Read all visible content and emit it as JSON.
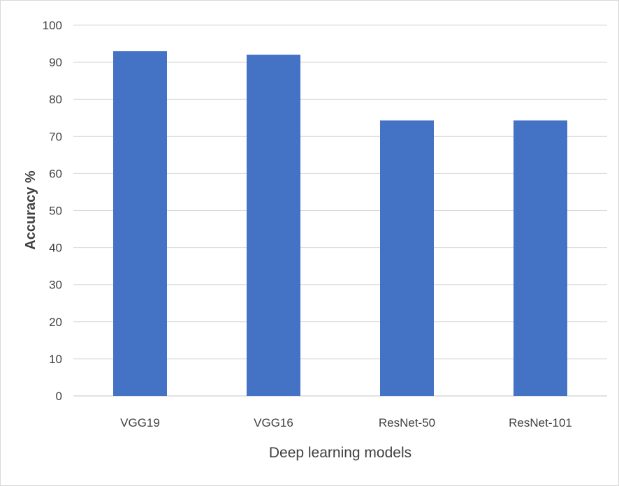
{
  "chart_data": {
    "type": "bar",
    "categories": [
      "VGG19",
      "VGG16",
      "ResNet-50",
      "ResNet-101"
    ],
    "values": [
      93,
      92,
      74.3,
      74.3
    ],
    "title": "",
    "xlabel": "Deep learning models",
    "ylabel": "Accuracy %",
    "ylim": [
      0,
      100
    ],
    "yticks": [
      0,
      10,
      20,
      30,
      40,
      50,
      60,
      70,
      80,
      90,
      100
    ],
    "grid": true,
    "legend": "none",
    "bar_color": "#4472C4",
    "grid_color": "#d9d9d9"
  }
}
